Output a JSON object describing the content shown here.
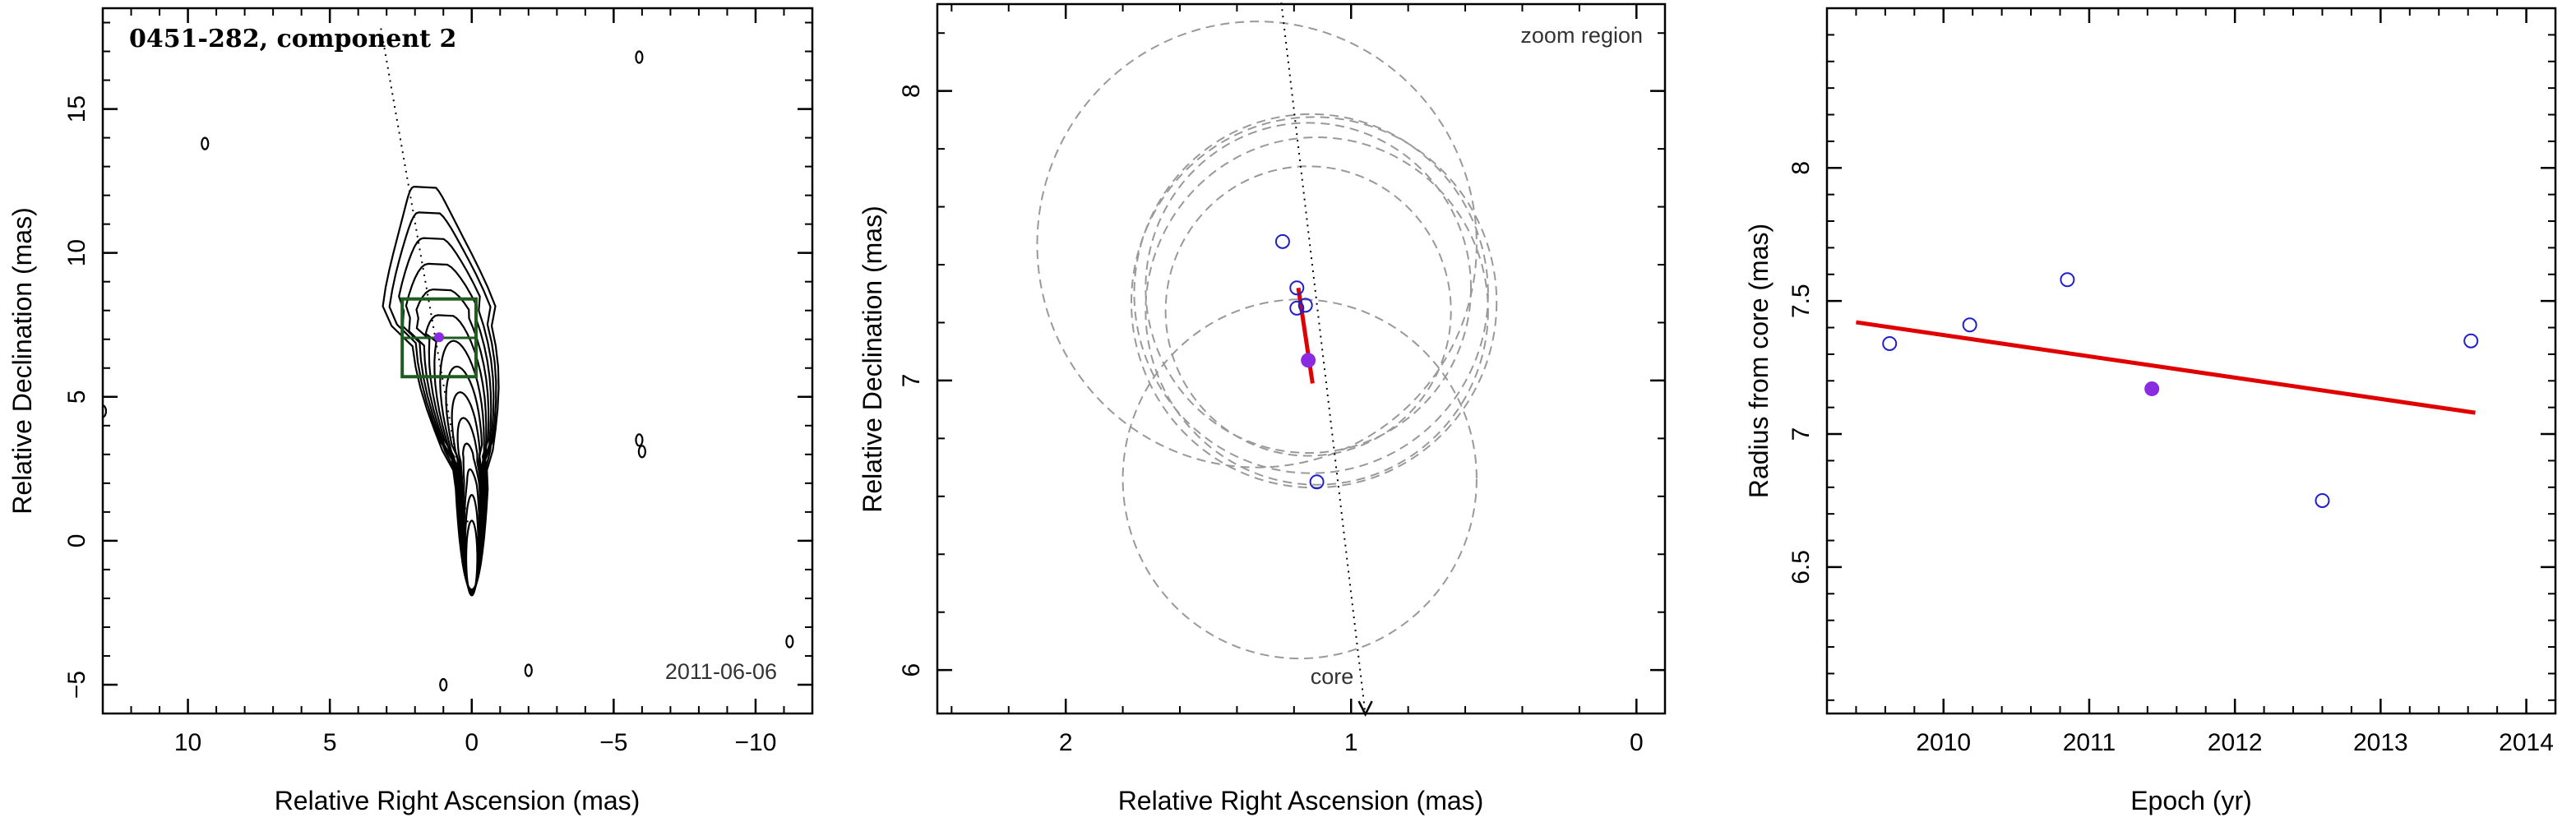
{
  "chart_data": [
    {
      "type": "contour",
      "title": "0451-282, component 2",
      "annotation": "2011-06-06",
      "xlabel": "Relative Right Ascension (mas)",
      "ylabel": "Relative Declination (mas)",
      "xlim": [
        13,
        -12
      ],
      "ylim": [
        -6,
        18.5
      ],
      "xticks": [
        10,
        5,
        0,
        -5,
        -10
      ],
      "yticks": [
        -5,
        0,
        5,
        10,
        15
      ],
      "xtick_labels": [
        "10",
        "5",
        "0",
        "−5",
        "−10"
      ],
      "ytick_labels": [
        "−5",
        "0",
        "5",
        "10",
        "15"
      ],
      "component": {
        "x": 1.15,
        "y": 7.07
      },
      "jet_direction_line": [
        [
          3.2,
          17.8
        ],
        [
          0.1,
          0.4
        ]
      ],
      "zoom_box": {
        "x": [
          -0.15,
          2.45
        ],
        "y": [
          5.7,
          8.4
        ]
      },
      "colors": {
        "contour": "#000000",
        "zoom_box": "#1f5c1f",
        "component": "#8a2be2"
      }
    },
    {
      "type": "scatter",
      "annotation": "zoom region",
      "core_label": "core",
      "xlabel": "Relative Right Ascension (mas)",
      "ylabel": "Relative Declination (mas)",
      "xlim": [
        2.45,
        -0.1
      ],
      "ylim": [
        5.85,
        8.3
      ],
      "xticks": [
        2,
        1,
        0
      ],
      "yticks": [
        6,
        7,
        8
      ],
      "xtick_labels": [
        "2",
        "1",
        "0"
      ],
      "ytick_labels": [
        "6",
        "7",
        "8"
      ],
      "points": [
        {
          "x": 1.24,
          "y": 7.48
        },
        {
          "x": 1.19,
          "y": 7.32
        },
        {
          "x": 1.16,
          "y": 7.26
        },
        {
          "x": 1.19,
          "y": 7.25
        },
        {
          "x": 1.12,
          "y": 6.65
        }
      ],
      "mean_point": {
        "x": 1.15,
        "y": 7.07
      },
      "fit_segment": [
        [
          1.185,
          7.32
        ],
        [
          1.135,
          6.99
        ]
      ],
      "circles": [
        {
          "cx": 1.33,
          "cy": 7.47,
          "r": 0.77
        },
        {
          "cx": 1.15,
          "cy": 7.32,
          "r": 0.57
        },
        {
          "cx": 1.14,
          "cy": 7.3,
          "r": 0.62
        },
        {
          "cx": 1.13,
          "cy": 7.27,
          "r": 0.64
        },
        {
          "cx": 1.12,
          "cy": 7.24,
          "r": 0.6
        },
        {
          "cx": 1.15,
          "cy": 7.24,
          "r": 0.5
        },
        {
          "cx": 1.18,
          "cy": 6.66,
          "r": 0.62
        }
      ],
      "jet_line": [
        [
          1.25,
          8.35
        ],
        [
          0.95,
          5.83
        ]
      ],
      "colors": {
        "points": "#1f1fcc",
        "mean": "#8a2be2",
        "fit": "#e00000",
        "circles": "#999999"
      }
    },
    {
      "type": "scatter",
      "xlabel": "Epoch (yr)",
      "ylabel": "Radius from core (mas)",
      "xlim": [
        2009.2,
        2014.2
      ],
      "ylim": [
        5.95,
        8.6
      ],
      "xticks": [
        2010,
        2011,
        2012,
        2013,
        2014
      ],
      "yticks": [
        6.5,
        7,
        7.5,
        8
      ],
      "xtick_labels": [
        "2010",
        "2011",
        "2012",
        "2013",
        "2014"
      ],
      "ytick_labels": [
        "6.5",
        "7",
        "7.5",
        "8"
      ],
      "points": [
        {
          "x": 2009.63,
          "y": 7.34
        },
        {
          "x": 2010.18,
          "y": 7.41
        },
        {
          "x": 2010.85,
          "y": 7.58
        },
        {
          "x": 2012.6,
          "y": 6.75
        },
        {
          "x": 2013.62,
          "y": 7.35
        }
      ],
      "mean_point": {
        "x": 2011.43,
        "y": 7.17
      },
      "fit_line": {
        "x": [
          2009.4,
          2013.65
        ],
        "y": [
          7.42,
          7.08
        ]
      },
      "colors": {
        "points": "#1f1fcc",
        "mean": "#8a2be2",
        "fit": "#e00000"
      }
    }
  ]
}
